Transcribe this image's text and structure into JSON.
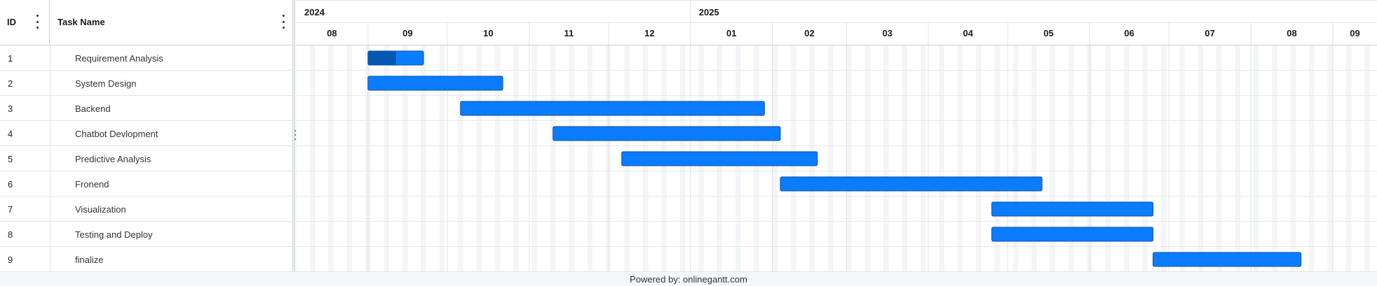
{
  "grid": {
    "columns": [
      {
        "key": "id",
        "label": "ID"
      },
      {
        "key": "name",
        "label": "Task Name"
      }
    ]
  },
  "timeline": {
    "years": [
      {
        "label": "2024"
      },
      {
        "label": "2025"
      }
    ],
    "months": [
      "08",
      "09",
      "10",
      "11",
      "12",
      "01",
      "02",
      "03",
      "04",
      "05",
      "06",
      "07",
      "08",
      "09"
    ]
  },
  "tasks": [
    {
      "id": "1",
      "name": "Requirement Analysis",
      "start": "2024-09-01",
      "end": "2024-09-22",
      "progress": 0.5
    },
    {
      "id": "2",
      "name": "System Design",
      "start": "2024-09-01",
      "end": "2024-10-22",
      "progress": 0
    },
    {
      "id": "3",
      "name": "Backend",
      "start": "2024-10-06",
      "end": "2025-01-29",
      "progress": 0
    },
    {
      "id": "4",
      "name": "Chatbot Devlopment",
      "start": "2024-11-10",
      "end": "2025-02-04",
      "progress": 0
    },
    {
      "id": "5",
      "name": "Predictive Analysis",
      "start": "2024-12-06",
      "end": "2025-02-18",
      "progress": 0
    },
    {
      "id": "6",
      "name": "Fronend",
      "start": "2025-02-04",
      "end": "2025-05-14",
      "progress": 0
    },
    {
      "id": "7",
      "name": "Visualization",
      "start": "2025-04-25",
      "end": "2025-06-25",
      "progress": 0
    },
    {
      "id": "8",
      "name": "Testing and Deploy",
      "start": "2025-04-25",
      "end": "2025-06-25",
      "progress": 0
    },
    {
      "id": "9",
      "name": "finalize",
      "start": "2025-06-25",
      "end": "2025-08-20",
      "progress": 0
    }
  ],
  "colors": {
    "bar": "#0a7cff",
    "bar_border": "#0a4f9e",
    "progress": "#0457b0",
    "weekend": "#f3f5f7",
    "grid_line": "#dfe3e7"
  },
  "footer": {
    "text": "Powered by: onlinegantt.com"
  }
}
